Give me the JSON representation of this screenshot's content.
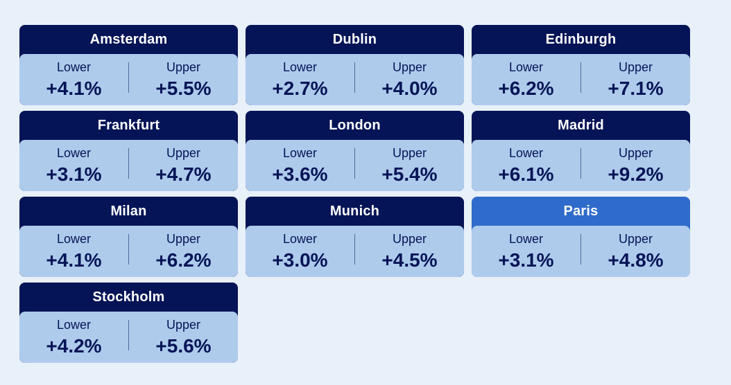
{
  "cities": [
    {
      "name": "Amsterdam",
      "lower_label": "Lower",
      "lower": "+4.1%",
      "upper_label": "Upper",
      "upper": "+5.5%"
    },
    {
      "name": "Dublin",
      "lower_label": "Lower",
      "lower": "+2.7%",
      "upper_label": "Upper",
      "upper": "+4.0%"
    },
    {
      "name": "Edinburgh",
      "lower_label": "Lower",
      "lower": "+6.2%",
      "upper_label": "Upper",
      "upper": "+7.1%"
    },
    {
      "name": "Frankfurt",
      "lower_label": "Lower",
      "lower": "+3.1%",
      "upper_label": "Upper",
      "upper": "+4.7%"
    },
    {
      "name": "London",
      "lower_label": "Lower",
      "lower": "+3.6%",
      "upper_label": "Upper",
      "upper": "+5.4%"
    },
    {
      "name": "Madrid",
      "lower_label": "Lower",
      "lower": "+6.1%",
      "upper_label": "Upper",
      "upper": "+9.2%"
    },
    {
      "name": "Milan",
      "lower_label": "Lower",
      "lower": "+4.1%",
      "upper_label": "Upper",
      "upper": "+6.2%"
    },
    {
      "name": "Munich",
      "lower_label": "Lower",
      "lower": "+3.0%",
      "upper_label": "Upper",
      "upper": "+4.5%"
    },
    {
      "name": "Paris",
      "lower_label": "Lower",
      "lower": "+3.1%",
      "upper_label": "Upper",
      "upper": "+4.8%",
      "active": true
    },
    {
      "name": "Stockholm",
      "lower_label": "Lower",
      "lower": "+4.2%",
      "upper_label": "Upper",
      "upper": "+5.6%"
    }
  ],
  "colors": {
    "header": "#051456",
    "header_active": "#2f6bca",
    "body": "#aecbec",
    "page_bg": "#e8f0f9",
    "text": "#051456"
  }
}
